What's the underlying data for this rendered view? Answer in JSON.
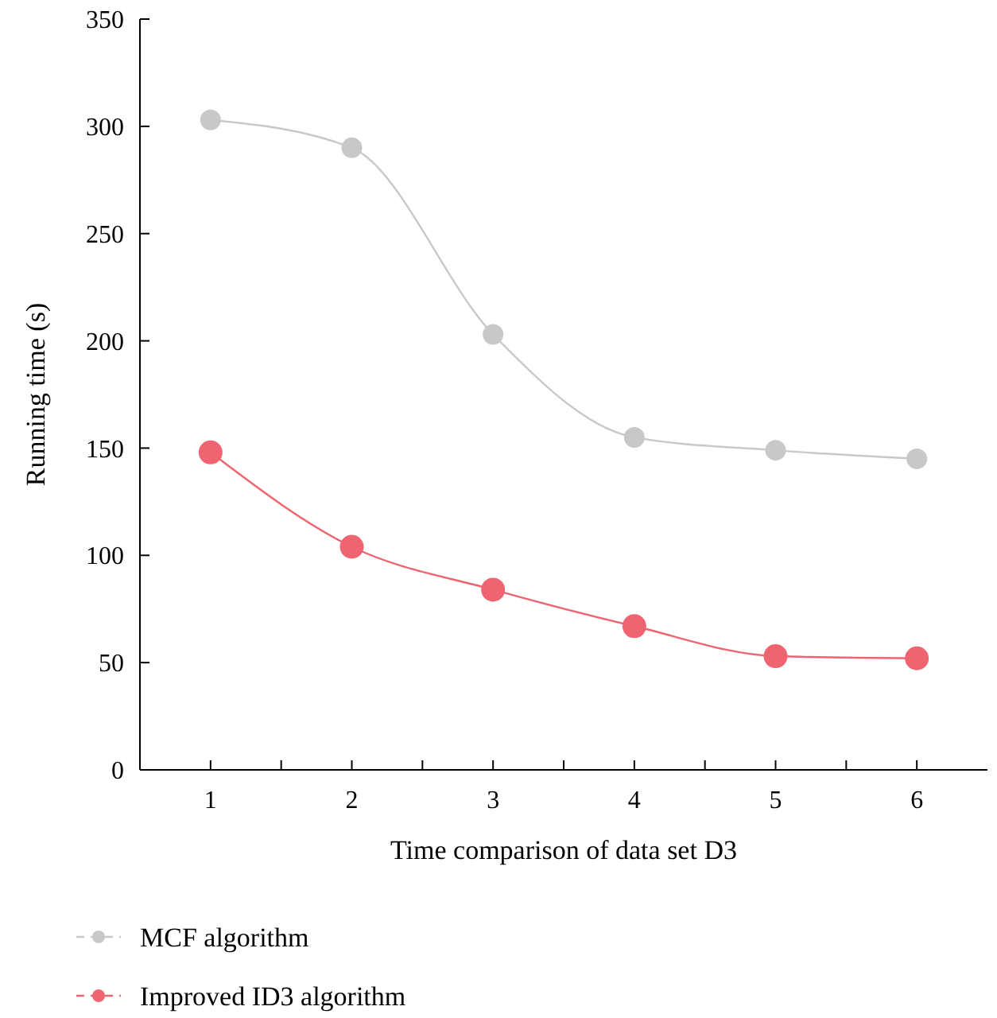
{
  "chart_data": {
    "type": "line",
    "xlabel": "Time comparison of data set D3",
    "ylabel": "Running time (s)",
    "x": [
      1,
      2,
      3,
      4,
      5,
      6
    ],
    "series": [
      {
        "name": "MCF algorithm",
        "color": "#c8c8c8",
        "values": [
          303,
          290,
          203,
          155,
          149,
          145
        ]
      },
      {
        "name": "Improved ID3 algorithm",
        "color": "#ee6470",
        "values": [
          148,
          104,
          84,
          67,
          53,
          52
        ]
      }
    ],
    "xlim": [
      0.5,
      6.5
    ],
    "xticks": [
      1,
      {
        "value": 1.5,
        "label": null
      },
      2,
      {
        "value": 2.5,
        "label": null
      },
      3,
      {
        "value": 3.5,
        "label": null
      },
      4,
      {
        "value": 4.5,
        "label": null
      },
      5,
      {
        "value": 5.5,
        "label": null
      },
      6
    ],
    "ylim": [
      0,
      350
    ],
    "yticks": [
      0,
      50,
      100,
      150,
      200,
      250,
      300,
      350
    ],
    "grid": false,
    "legend": "bottom",
    "marker": "circle",
    "line_style": "solid"
  }
}
